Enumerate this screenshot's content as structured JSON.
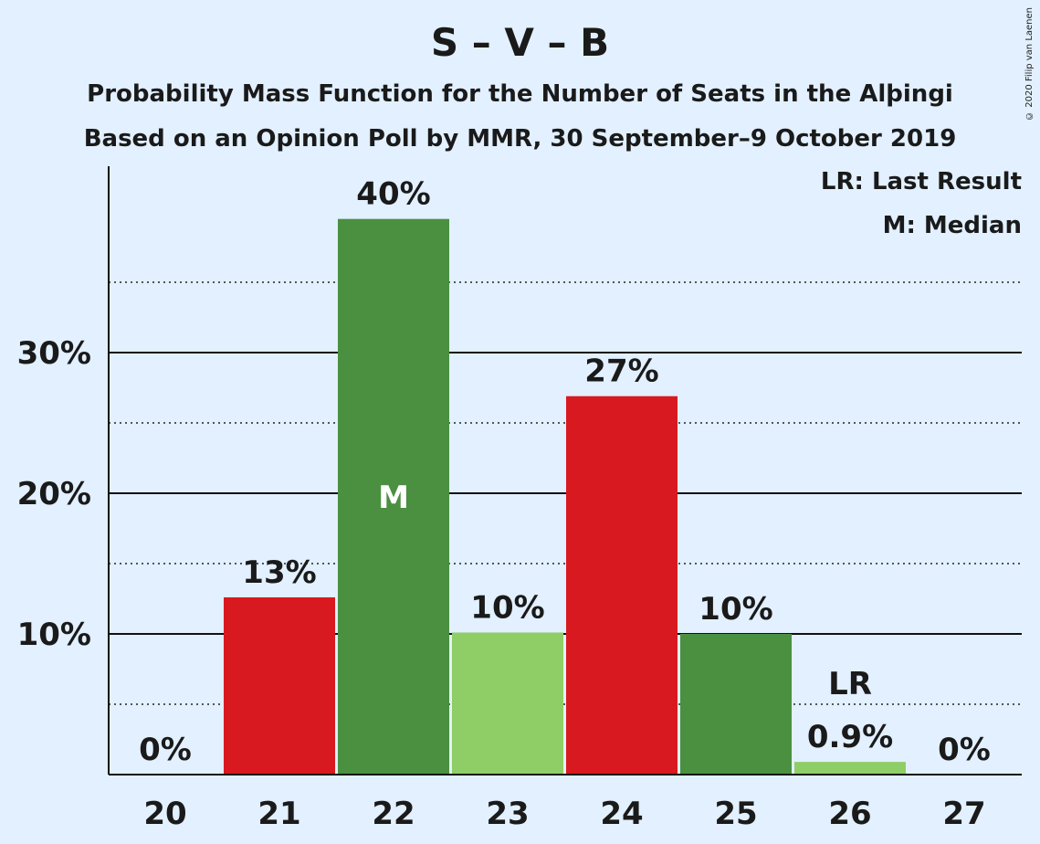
{
  "title": "S – V – B",
  "subtitle1": "Probability Mass Function for the Number of Seats in the Alþingi",
  "subtitle2": "Based on an Opinion Poll by MMR, 30 September–9 October 2019",
  "copyright": "© 2020 Filip van Laenen",
  "legend": {
    "lr": "LR: Last Result",
    "m": "M: Median"
  },
  "chart_data": {
    "type": "bar",
    "categories": [
      "20",
      "21",
      "22",
      "23",
      "24",
      "25",
      "26",
      "27"
    ],
    "values": [
      0,
      12.6,
      39.5,
      10.1,
      26.9,
      10.0,
      0.9,
      0
    ],
    "data_labels": [
      "0%",
      "13%",
      "40%",
      "10%",
      "27%",
      "10%",
      "0.9%",
      "0%"
    ],
    "bar_colors": [
      "#d81920",
      "#d81920",
      "#4a9040",
      "#8fce66",
      "#d81920",
      "#4a9040",
      "#8fce66",
      "#d81920"
    ],
    "markers": {
      "median": {
        "category": "22",
        "label": "M"
      },
      "last_result": {
        "category": "26",
        "label": "LR"
      }
    },
    "yticks": [
      10,
      20,
      30
    ],
    "ytick_labels": [
      "10%",
      "20%",
      "30%"
    ],
    "minor_gridlines": [
      5,
      15,
      25,
      35
    ],
    "ylim": [
      0,
      43
    ],
    "xlabel": "",
    "ylabel": ""
  }
}
